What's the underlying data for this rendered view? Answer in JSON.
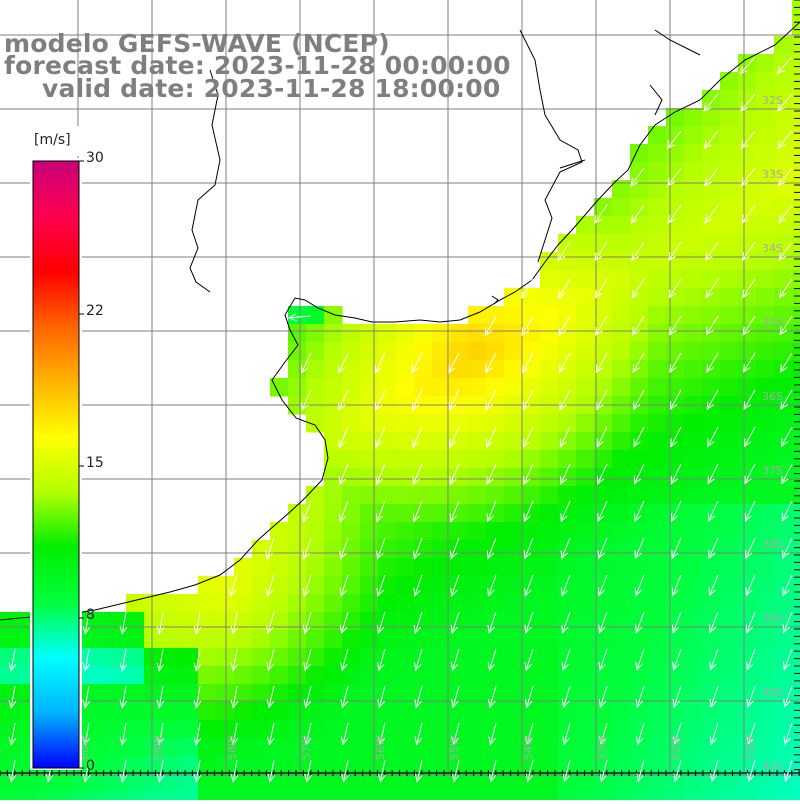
{
  "title": {
    "line1": "modelo GEFS-WAVE (NCEP)",
    "line2": "forecast date: 2023-11-28 00:00:00",
    "line3": "valid date: 2023-11-28 18:00:00"
  },
  "colorbar": {
    "unit": "[m/s]",
    "ticks": [
      {
        "label": "30",
        "value": 30
      },
      {
        "label": "22",
        "value": 22
      },
      {
        "label": "15",
        "value": 15
      },
      {
        "label": "8",
        "value": 8
      },
      {
        "label": "0",
        "value": 0
      }
    ],
    "stops": [
      "#0000ff",
      "#00b4ff",
      "#00ffff",
      "#00ff3c",
      "#00ee00",
      "#b4ff00",
      "#ffff00",
      "#ffb400",
      "#ff6400",
      "#ff0000",
      "#ff0050",
      "#c80078"
    ]
  },
  "map": {
    "lon_labels": [
      "60W",
      "59W",
      "58W",
      "57W",
      "56W",
      "55W",
      "54W",
      "53W",
      "52W",
      "51W"
    ],
    "lat_labels": [
      "32S",
      "33S",
      "34S",
      "35S",
      "36S",
      "37S",
      "38S",
      "39S",
      "40S",
      "41S"
    ],
    "colors": {
      "land": "#ffffff",
      "grid": "#7f7f7f",
      "coast": "#000000",
      "arrow": "#ffffff"
    }
  }
}
